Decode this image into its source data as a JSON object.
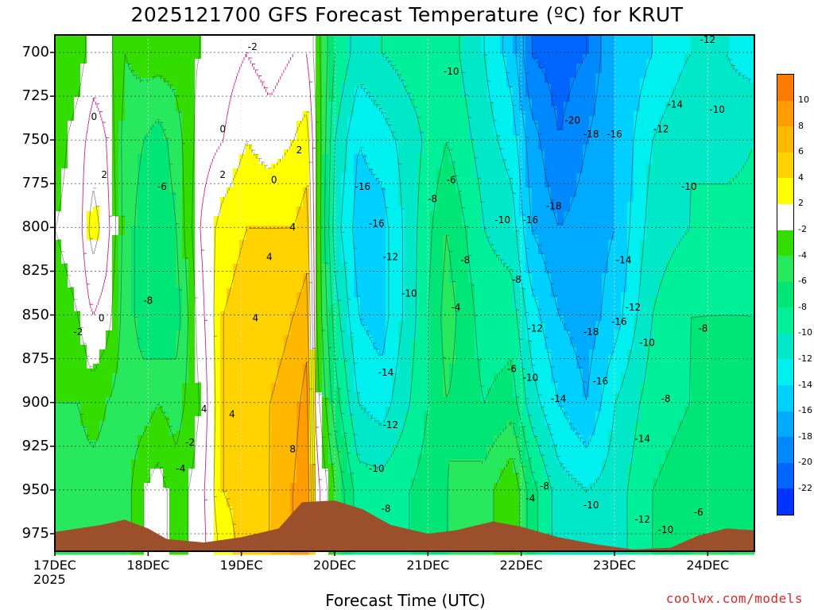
{
  "title": "2025121700 GFS Forecast Temperature (ºC) for KRUT",
  "xlabel": "Forecast Time (UTC)",
  "credit": "coolwx.com/models",
  "chart_data": {
    "type": "heatmap",
    "title": "2025121700 GFS Forecast Temperature (ºC) for KRUT",
    "xlabel": "Forecast Time (UTC)",
    "ylabel": "",
    "x_ticks": [
      "17DEC",
      "18DEC",
      "19DEC",
      "20DEC",
      "21DEC",
      "22DEC",
      "23DEC",
      "24DEC"
    ],
    "x_year": "2025",
    "y_ticks": [
      700,
      725,
      750,
      775,
      800,
      825,
      850,
      875,
      900,
      925,
      950,
      975
    ],
    "y_range_hpa": [
      690,
      985
    ],
    "x_range_days": [
      0,
      7.5
    ],
    "colorbar": {
      "labels": [
        10,
        8,
        6,
        4,
        2,
        -2,
        -4,
        -6,
        -8,
        -10,
        -12,
        -14,
        -16,
        -18,
        -20,
        -22
      ],
      "bands": [
        {
          "lo": 10,
          "hi": 12,
          "color": "#ff7b00"
        },
        {
          "lo": 8,
          "hi": 10,
          "color": "#ff9c00"
        },
        {
          "lo": 6,
          "hi": 8,
          "color": "#ffb800"
        },
        {
          "lo": 4,
          "hi": 6,
          "color": "#ffd200"
        },
        {
          "lo": 2,
          "hi": 4,
          "color": "#ffff00"
        },
        {
          "lo": -2,
          "hi": 2,
          "color": "#ffffff"
        },
        {
          "lo": -4,
          "hi": -2,
          "color": "#33dd00"
        },
        {
          "lo": -6,
          "hi": -4,
          "color": "#28e85e"
        },
        {
          "lo": -8,
          "hi": -6,
          "color": "#00e676"
        },
        {
          "lo": -10,
          "hi": -8,
          "color": "#00f09a"
        },
        {
          "lo": -12,
          "hi": -10,
          "color": "#00e8c8"
        },
        {
          "lo": -14,
          "hi": -12,
          "color": "#00f0f0"
        },
        {
          "lo": -16,
          "hi": -14,
          "color": "#00d0ff"
        },
        {
          "lo": -18,
          "hi": -16,
          "color": "#00aaff"
        },
        {
          "lo": -20,
          "hi": -18,
          "color": "#0088ff"
        },
        {
          "lo": -22,
          "hi": -20,
          "color": "#0066ff"
        },
        {
          "lo": -24,
          "hi": -22,
          "color": "#0033ff"
        }
      ]
    },
    "temperature_columns": [
      {
        "day": 0.0,
        "t": {
          "700": -4,
          "750": -3,
          "800": -2,
          "850": -3,
          "900": -4,
          "950": -5,
          "975": -5
        }
      },
      {
        "day": 0.25,
        "t": {
          "700": -3,
          "750": -1,
          "800": -1,
          "850": -2,
          "900": -4,
          "950": -5,
          "975": -5
        }
      },
      {
        "day": 0.4,
        "t": {
          "700": -1,
          "750": 1,
          "800": 3,
          "850": 0,
          "900": -3,
          "950": -5,
          "975": -5
        }
      },
      {
        "day": 0.55,
        "t": {
          "700": -1,
          "750": 0,
          "800": 1,
          "850": -1,
          "900": -4,
          "950": -5,
          "975": -5
        }
      },
      {
        "day": 0.75,
        "t": {
          "700": -4,
          "750": -5,
          "800": -5,
          "850": -5,
          "900": -5,
          "950": -5,
          "975": -5
        }
      },
      {
        "day": 0.95,
        "t": {
          "700": -3,
          "750": -6,
          "800": -7,
          "850": -7,
          "900": -5,
          "950": -2,
          "975": -2
        }
      },
      {
        "day": 1.1,
        "t": {
          "700": -3,
          "750": -7,
          "800": -8,
          "850": -8,
          "900": -4,
          "950": -1,
          "975": -1
        }
      },
      {
        "day": 1.3,
        "t": {
          "700": -3,
          "750": -5,
          "800": -6,
          "850": -7,
          "900": -5,
          "950": -3,
          "975": -3
        }
      },
      {
        "day": 1.55,
        "t": {
          "700": -2,
          "750": -1,
          "800": 0,
          "850": -1,
          "900": -2,
          "950": -1,
          "975": -1
        }
      },
      {
        "day": 1.8,
        "t": {
          "700": -1,
          "750": 0,
          "800": 3,
          "850": 4,
          "900": 4,
          "950": 4,
          "975": 3
        }
      },
      {
        "day": 2.05,
        "t": {
          "700": 0,
          "750": 2,
          "800": 4,
          "850": 5,
          "900": 5,
          "950": 5,
          "975": 5
        }
      },
      {
        "day": 2.3,
        "t": {
          "700": -1,
          "750": 1,
          "800": 4,
          "850": 5,
          "900": 6,
          "950": 6,
          "975": 6
        }
      },
      {
        "day": 2.55,
        "t": {
          "700": 0,
          "750": 2,
          "800": 4,
          "850": 6,
          "900": 7,
          "950": 8,
          "975": 8
        }
      },
      {
        "day": 2.7,
        "t": {
          "700": 0,
          "750": 3,
          "800": 5,
          "850": 7,
          "900": 9,
          "950": 10,
          "975": 10
        }
      },
      {
        "day": 2.8,
        "t": {
          "700": -3,
          "750": -2,
          "800": -2,
          "850": -2,
          "900": -1,
          "950": 1,
          "975": 1
        }
      },
      {
        "day": 3.0,
        "t": {
          "700": -8,
          "750": -10,
          "800": -11,
          "850": -9,
          "900": -7,
          "950": -4,
          "975": -4
        }
      },
      {
        "day": 3.25,
        "t": {
          "700": -11,
          "750": -14,
          "800": -15,
          "850": -14,
          "900": -12,
          "950": -9,
          "975": -9
        }
      },
      {
        "day": 3.5,
        "t": {
          "700": -10,
          "750": -13,
          "800": -15,
          "850": -15,
          "900": -13,
          "950": -9,
          "975": -9
        }
      },
      {
        "day": 3.8,
        "t": {
          "700": -9,
          "750": -11,
          "800": -11,
          "850": -11,
          "900": -10,
          "950": -8,
          "975": -8
        }
      },
      {
        "day": 4.2,
        "t": {
          "700": -9,
          "750": -8,
          "800": -6,
          "850": -5,
          "900": -6,
          "950": -6,
          "975": -6
        }
      },
      {
        "day": 4.6,
        "t": {
          "700": -12,
          "750": -11,
          "800": -10,
          "850": -9,
          "900": -8,
          "950": -5,
          "975": -5
        }
      },
      {
        "day": 4.9,
        "t": {
          "700": -15,
          "750": -13,
          "800": -11,
          "850": -9,
          "900": -7,
          "950": -2,
          "975": -2
        }
      },
      {
        "day": 5.1,
        "t": {
          "700": -20,
          "750": -17,
          "800": -16,
          "850": -13,
          "900": -11,
          "950": -7,
          "975": -7
        }
      },
      {
        "day": 5.4,
        "t": {
          "700": -21,
          "750": -20,
          "800": -18,
          "850": -16,
          "900": -14,
          "950": -11,
          "975": -11
        }
      },
      {
        "day": 5.7,
        "t": {
          "700": -20,
          "750": -18,
          "800": -17,
          "850": -17,
          "900": -16,
          "950": -12,
          "975": -12
        }
      },
      {
        "day": 6.0,
        "t": {
          "700": -16,
          "750": -16,
          "800": -16,
          "850": -15,
          "900": -12,
          "950": -11,
          "975": -11
        }
      },
      {
        "day": 6.4,
        "t": {
          "700": -14,
          "750": -12,
          "800": -11,
          "850": -10,
          "900": -9,
          "950": -8,
          "975": -8
        }
      },
      {
        "day": 6.8,
        "t": {
          "700": -12,
          "750": -10,
          "800": -10,
          "850": -8,
          "900": -8,
          "950": -7,
          "975": -6
        }
      },
      {
        "day": 7.2,
        "t": {
          "700": -12,
          "750": -11,
          "800": -9,
          "850": -8,
          "900": -7,
          "950": -7,
          "975": -6
        }
      },
      {
        "day": 7.5,
        "t": {
          "700": -13,
          "750": -10,
          "800": -9,
          "850": -8,
          "900": -8,
          "950": -7,
          "975": -6
        }
      }
    ],
    "surface_pressure": [
      {
        "day": 0.0,
        "p": 974
      },
      {
        "day": 0.5,
        "p": 970
      },
      {
        "day": 0.75,
        "p": 967
      },
      {
        "day": 1.0,
        "p": 972
      },
      {
        "day": 1.2,
        "p": 978
      },
      {
        "day": 1.6,
        "p": 980
      },
      {
        "day": 2.0,
        "p": 977
      },
      {
        "day": 2.4,
        "p": 972
      },
      {
        "day": 2.65,
        "p": 957
      },
      {
        "day": 3.0,
        "p": 956
      },
      {
        "day": 3.3,
        "p": 961
      },
      {
        "day": 3.6,
        "p": 970
      },
      {
        "day": 4.0,
        "p": 975
      },
      {
        "day": 4.3,
        "p": 973
      },
      {
        "day": 4.7,
        "p": 968
      },
      {
        "day": 5.0,
        "p": 971
      },
      {
        "day": 5.4,
        "p": 977
      },
      {
        "day": 5.8,
        "p": 981
      },
      {
        "day": 6.2,
        "p": 984
      },
      {
        "day": 6.6,
        "p": 983
      },
      {
        "day": 6.9,
        "p": 976
      },
      {
        "day": 7.2,
        "p": 972
      },
      {
        "day": 7.5,
        "p": 973
      }
    ],
    "contour_labels": [
      {
        "text": "-2",
        "day": 2.12,
        "p": 697
      },
      {
        "text": "-12",
        "day": 7.0,
        "p": 693
      },
      {
        "text": "-10",
        "day": 4.25,
        "p": 711
      },
      {
        "text": "-14",
        "day": 6.65,
        "p": 730
      },
      {
        "text": "-10",
        "day": 7.1,
        "p": 733
      },
      {
        "text": "-20",
        "day": 5.55,
        "p": 739
      },
      {
        "text": "0",
        "day": 0.42,
        "p": 737
      },
      {
        "text": "0",
        "day": 1.8,
        "p": 744
      },
      {
        "text": "-18",
        "day": 5.75,
        "p": 747
      },
      {
        "text": "-16",
        "day": 6.0,
        "p": 747
      },
      {
        "text": "-12",
        "day": 6.5,
        "p": 744
      },
      {
        "text": "2",
        "day": 0.53,
        "p": 770
      },
      {
        "text": "2",
        "day": 2.62,
        "p": 756
      },
      {
        "text": "2",
        "day": 1.8,
        "p": 770
      },
      {
        "text": "0",
        "day": 2.35,
        "p": 773
      },
      {
        "text": "-6",
        "day": 1.15,
        "p": 777
      },
      {
        "text": "-16",
        "day": 3.3,
        "p": 777
      },
      {
        "text": "-6",
        "day": 4.25,
        "p": 773
      },
      {
        "text": "-10",
        "day": 6.8,
        "p": 777
      },
      {
        "text": "-8",
        "day": 4.05,
        "p": 784
      },
      {
        "text": "-18",
        "day": 5.35,
        "p": 788
      },
      {
        "text": "-16",
        "day": 3.45,
        "p": 798
      },
      {
        "text": "-10",
        "day": 4.8,
        "p": 796
      },
      {
        "text": "-16",
        "day": 5.1,
        "p": 796
      },
      {
        "text": "4",
        "day": 2.55,
        "p": 800
      },
      {
        "text": "-8",
        "day": 4.4,
        "p": 819
      },
      {
        "text": "4",
        "day": 2.3,
        "p": 817
      },
      {
        "text": "-12",
        "day": 3.6,
        "p": 817
      },
      {
        "text": "-14",
        "day": 6.1,
        "p": 819
      },
      {
        "text": "-8",
        "day": 4.95,
        "p": 830
      },
      {
        "text": "-10",
        "day": 3.8,
        "p": 838
      },
      {
        "text": "-8",
        "day": 1.0,
        "p": 842
      },
      {
        "text": "4",
        "day": 2.15,
        "p": 852
      },
      {
        "text": "0",
        "day": 0.5,
        "p": 852
      },
      {
        "text": "-4",
        "day": 4.3,
        "p": 846
      },
      {
        "text": "-12",
        "day": 6.2,
        "p": 846
      },
      {
        "text": "-16",
        "day": 6.05,
        "p": 854
      },
      {
        "text": "-2",
        "day": 0.25,
        "p": 860
      },
      {
        "text": "-12",
        "day": 5.15,
        "p": 858
      },
      {
        "text": "-18",
        "day": 5.75,
        "p": 860
      },
      {
        "text": "-8",
        "day": 6.95,
        "p": 858
      },
      {
        "text": "-10",
        "day": 6.35,
        "p": 866
      },
      {
        "text": "-6",
        "day": 4.9,
        "p": 881
      },
      {
        "text": "-14",
        "day": 3.55,
        "p": 883
      },
      {
        "text": "-10",
        "day": 5.1,
        "p": 886
      },
      {
        "text": "-16",
        "day": 5.85,
        "p": 888
      },
      {
        "text": "-14",
        "day": 5.4,
        "p": 898
      },
      {
        "text": "-8",
        "day": 6.55,
        "p": 898
      },
      {
        "text": "4",
        "day": 1.6,
        "p": 904
      },
      {
        "text": "4",
        "day": 1.9,
        "p": 907
      },
      {
        "text": "-12",
        "day": 3.6,
        "p": 913
      },
      {
        "text": "-2",
        "day": 1.45,
        "p": 923
      },
      {
        "text": "8",
        "day": 2.55,
        "p": 927
      },
      {
        "text": "-14",
        "day": 6.3,
        "p": 921
      },
      {
        "text": "-4",
        "day": 1.35,
        "p": 938
      },
      {
        "text": "-10",
        "day": 3.45,
        "p": 938
      },
      {
        "text": "-8",
        "day": 5.25,
        "p": 948
      },
      {
        "text": "-4",
        "day": 5.1,
        "p": 955
      },
      {
        "text": "-10",
        "day": 5.75,
        "p": 959
      },
      {
        "text": "-6",
        "day": 6.9,
        "p": 963
      },
      {
        "text": "-8",
        "day": 3.55,
        "p": 961
      },
      {
        "text": "-12",
        "day": 6.3,
        "p": 967
      },
      {
        "text": "-10",
        "day": 6.55,
        "p": 973
      }
    ]
  }
}
